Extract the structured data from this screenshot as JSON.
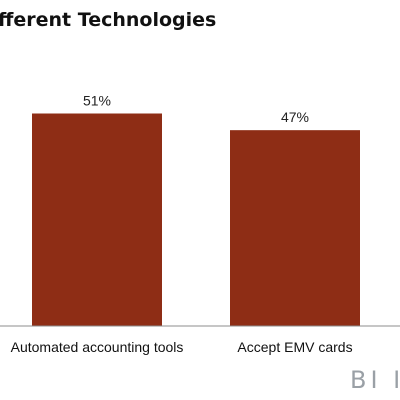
{
  "colors": {
    "bar": "#8e2d15",
    "axis": "#8c8c8c",
    "watermark": "#9aa0a6"
  },
  "watermark": "BI II",
  "chart_data": {
    "type": "bar",
    "title": "fferent Technologies",
    "categories": [
      "Automated accounting tools",
      "Accept EMV cards"
    ],
    "values": [
      51,
      47
    ],
    "data_labels": [
      "51%",
      "47%"
    ],
    "ylim": [
      0,
      60
    ],
    "grid": false,
    "legend": "none",
    "xlabel": "",
    "ylabel": ""
  }
}
